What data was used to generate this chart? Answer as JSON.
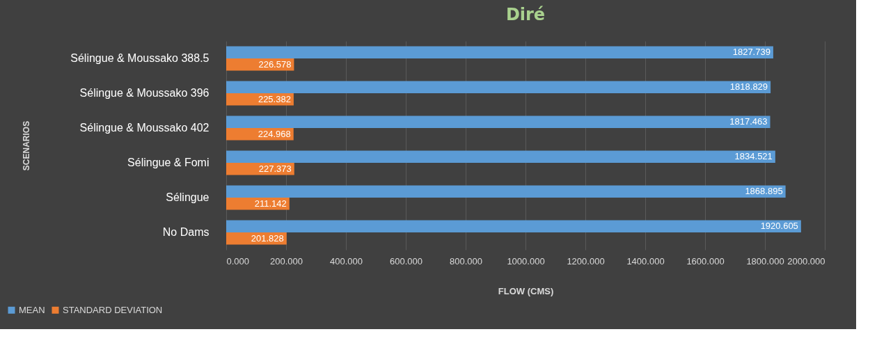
{
  "chart_data": {
    "type": "bar",
    "orientation": "horizontal",
    "title": "Diré",
    "xlabel": "FLOW (CMS)",
    "ylabel": "SCENARIOS",
    "categories": [
      "Sélingue & Moussako 388.5",
      "Sélingue & Moussako 396",
      "Sélingue & Moussako 402",
      "Sélingue & Fomi",
      "Sélingue",
      "No Dams"
    ],
    "series": [
      {
        "name": "MEAN",
        "color": "#5b9bd5",
        "values": [
          1827.739,
          1818.829,
          1817.463,
          1834.521,
          1868.895,
          1920.605
        ]
      },
      {
        "name": "STANDARD DEVIATION",
        "color": "#ed7d31",
        "values": [
          226.578,
          225.382,
          224.968,
          227.373,
          211.142,
          201.828
        ]
      }
    ],
    "xlim": [
      0,
      2000
    ],
    "xticks": [
      {
        "value": 0,
        "label": "0.000"
      },
      {
        "value": 200,
        "label": "200.000"
      },
      {
        "value": 400,
        "label": "400.000"
      },
      {
        "value": 600,
        "label": "600.000"
      },
      {
        "value": 800,
        "label": "800.000"
      },
      {
        "value": 1000,
        "label": "1000.000"
      },
      {
        "value": 1200,
        "label": "1200.000"
      },
      {
        "value": 1400,
        "label": "1400.000"
      },
      {
        "value": 1600,
        "label": "1600.000"
      },
      {
        "value": 1800,
        "label": "1800.000"
      },
      {
        "value": 2000,
        "label": "2000.000"
      }
    ],
    "data_labels": true,
    "grid": "x",
    "legend": "bottom left"
  }
}
